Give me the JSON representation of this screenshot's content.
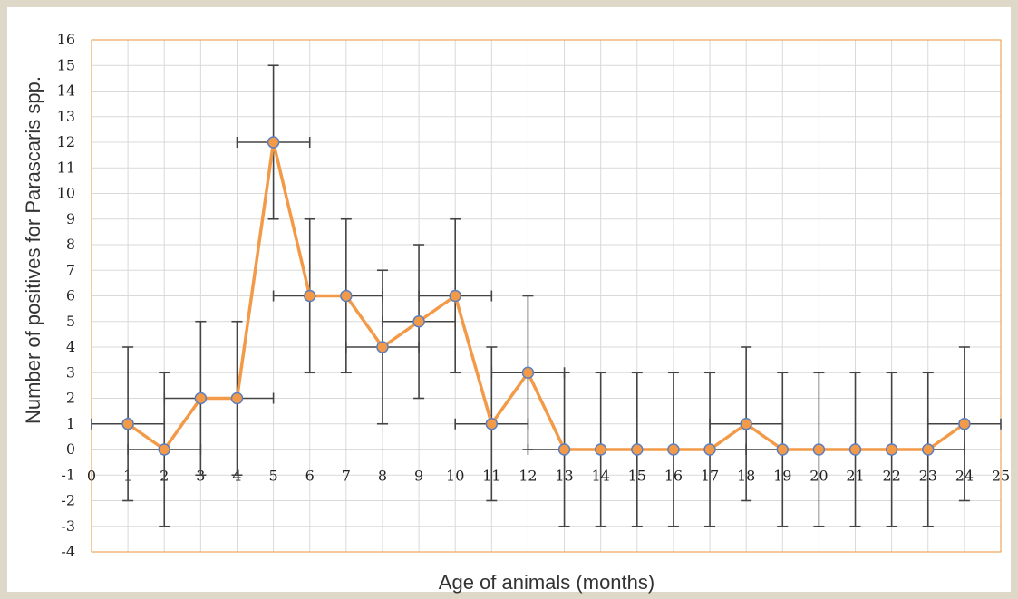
{
  "chart_data": {
    "type": "line",
    "xlabel": "Age of animals (months)",
    "ylabel": "Number of positives for Parascaris spp.",
    "xlim": [
      0,
      25
    ],
    "ylim": [
      -4,
      16
    ],
    "x_ticks": [
      0,
      1,
      2,
      3,
      4,
      5,
      6,
      7,
      8,
      9,
      10,
      11,
      12,
      13,
      14,
      15,
      16,
      17,
      18,
      19,
      20,
      21,
      22,
      23,
      24,
      25
    ],
    "y_ticks": [
      -4,
      -3,
      -2,
      -1,
      0,
      1,
      2,
      3,
      4,
      5,
      6,
      7,
      8,
      9,
      10,
      11,
      12,
      13,
      14,
      15,
      16
    ],
    "grid": true,
    "colors": {
      "line": "#f39a48",
      "marker_fill": "#f39a48",
      "marker_edge": "#5b7fbf",
      "error_bar": "#444444",
      "grid": "#d9d9d9",
      "plot_border": "#e8963a"
    },
    "series": [
      {
        "x": [
          1,
          2,
          3,
          4,
          5,
          6,
          7,
          8,
          9,
          10,
          11,
          12,
          13,
          14,
          15,
          16,
          17,
          18,
          19,
          20,
          21,
          22,
          23,
          24
        ],
        "y": [
          1,
          0,
          2,
          2,
          12,
          6,
          6,
          4,
          5,
          6,
          1,
          3,
          0,
          0,
          0,
          0,
          0,
          1,
          0,
          0,
          0,
          0,
          0,
          1
        ],
        "y_error": 3,
        "x_error": 1
      }
    ]
  }
}
